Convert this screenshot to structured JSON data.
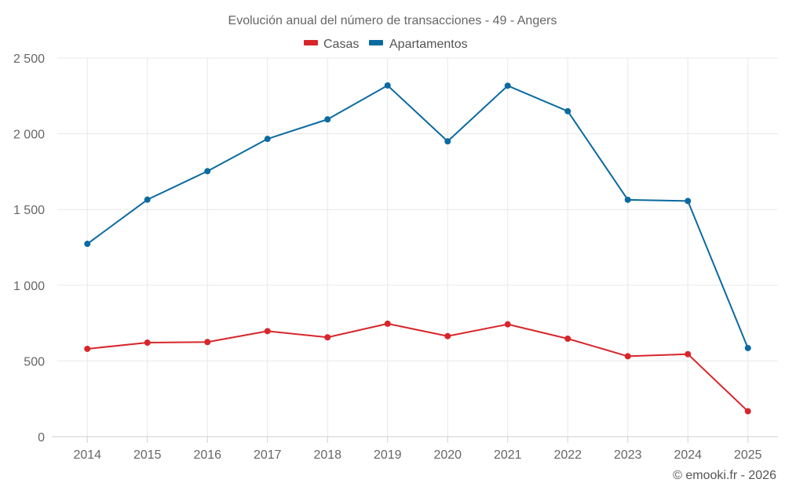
{
  "chart_data": {
    "type": "line",
    "title": "Evolución anual del número de transacciones - 49 - Angers",
    "xlabel": "",
    "ylabel": "",
    "categories": [
      "2014",
      "2015",
      "2016",
      "2017",
      "2018",
      "2019",
      "2020",
      "2021",
      "2022",
      "2023",
      "2024",
      "2025"
    ],
    "ylim": [
      0,
      2500
    ],
    "yticks": [
      0,
      500,
      1000,
      1500,
      2000,
      2500
    ],
    "ytick_labels": [
      "0",
      "500",
      "1 000",
      "1 500",
      "2 000",
      "2 500"
    ],
    "grid": true,
    "legend_position": "top-center",
    "series": [
      {
        "name": "Casas",
        "color": "#d7262b",
        "values": [
          580,
          621,
          625,
          697,
          656,
          746,
          664,
          742,
          647,
          531,
          545,
          168
        ]
      },
      {
        "name": "Apartamentos",
        "color": "#0b6aa0",
        "values": [
          1273,
          1565,
          1753,
          1966,
          2095,
          2319,
          1950,
          2317,
          2149,
          1564,
          1556,
          585
        ]
      }
    ]
  },
  "credit": "© emooki.fr - 2026"
}
